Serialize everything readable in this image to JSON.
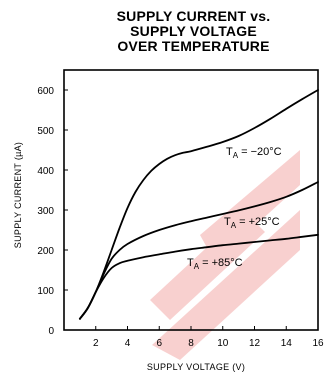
{
  "title_lines": [
    "SUPPLY CURRENT vs.",
    "SUPPLY VOLTAGE",
    "OVER TEMPERATURE"
  ],
  "chart_data": {
    "type": "line",
    "title": "SUPPLY CURRENT vs. SUPPLY VOLTAGE OVER TEMPERATURE",
    "xlabel": "SUPPLY VOLTAGE (V)",
    "ylabel": "SUPPLY CURRENT (µA)",
    "xlim": [
      0,
      16
    ],
    "ylim": [
      0,
      650
    ],
    "x_ticks": [
      2,
      4,
      6,
      8,
      10,
      12,
      14,
      16
    ],
    "y_ticks": [
      0,
      100,
      200,
      300,
      400,
      500,
      600
    ],
    "grid": false,
    "series": [
      {
        "label_main": "T",
        "label_sub": "A",
        "label_rest": " = −20°C",
        "x": [
          1,
          1.5,
          2,
          2.5,
          3,
          3.5,
          4,
          4.5,
          5,
          5.5,
          6,
          6.5,
          7,
          7.5,
          8,
          9,
          10,
          11,
          12,
          13,
          14,
          15,
          16
        ],
        "y": [
          28,
          55,
          95,
          145,
          200,
          255,
          305,
          345,
          375,
          398,
          415,
          428,
          437,
          443,
          447,
          458,
          470,
          485,
          505,
          528,
          553,
          577,
          600
        ]
      },
      {
        "label_main": "T",
        "label_sub": "A",
        "label_rest": " = +25°C",
        "x": [
          1,
          1.5,
          2,
          2.5,
          3,
          3.5,
          4,
          5,
          6,
          7,
          8,
          9,
          10,
          11,
          12,
          13,
          14,
          15,
          16
        ],
        "y": [
          28,
          55,
          95,
          140,
          178,
          200,
          215,
          235,
          250,
          262,
          272,
          281,
          290,
          299,
          309,
          320,
          333,
          350,
          370
        ]
      },
      {
        "label_main": "T",
        "label_sub": "A",
        "label_rest": " = +85°C",
        "x": [
          1,
          1.5,
          2,
          2.5,
          3,
          3.5,
          4,
          5,
          6,
          7,
          8,
          9,
          10,
          11,
          12,
          13,
          14,
          15,
          16
        ],
        "y": [
          28,
          55,
          95,
          130,
          155,
          167,
          173,
          182,
          189,
          196,
          202,
          207,
          212,
          216,
          220,
          224,
          228,
          233,
          238
        ]
      }
    ]
  }
}
